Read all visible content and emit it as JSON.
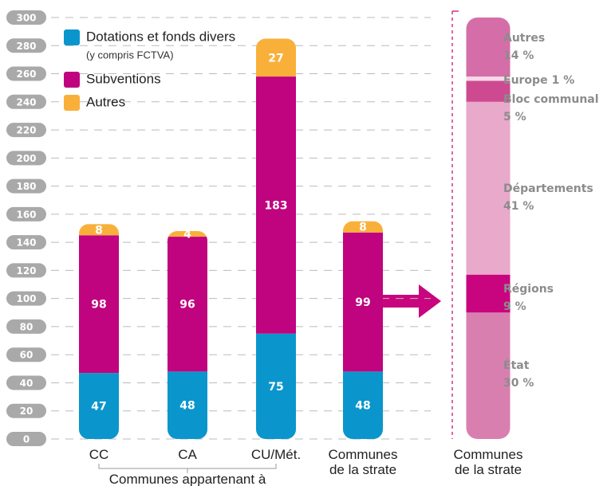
{
  "chart_data": [
    {
      "type": "bar",
      "stacked": true,
      "categories": [
        "CC",
        "CA",
        "CU/Mét.",
        "Communes de la strate"
      ],
      "category_group": "Communes appartenant à",
      "series": [
        {
          "name": "Dotations et fonds divers",
          "legend_note": "(y compris FCTVA)",
          "color": "#0a96cc",
          "values": [
            47,
            48,
            75,
            48
          ]
        },
        {
          "name": "Subventions",
          "color": "#c0037f",
          "values": [
            98,
            96,
            183,
            99
          ]
        },
        {
          "name": "Autres",
          "color": "#f9b03a",
          "values": [
            8,
            4,
            27,
            8
          ]
        }
      ],
      "ylim": [
        0,
        300
      ],
      "yticks": [
        0,
        20,
        40,
        60,
        80,
        100,
        120,
        140,
        160,
        180,
        200,
        220,
        240,
        260,
        280,
        300
      ],
      "grid": true
    },
    {
      "type": "bar",
      "stacked": true,
      "categories": [
        "Communes de la strate"
      ],
      "series": [
        {
          "name": "État",
          "color": "#d97fb0",
          "values": [
            30
          ],
          "value_labels": [
            "30 %"
          ]
        },
        {
          "name": "Régions",
          "color": "#c8057e",
          "values": [
            9
          ],
          "value_labels": [
            "9 %"
          ]
        },
        {
          "name": "Départements",
          "color": "#e8a9cb",
          "values": [
            41
          ],
          "value_labels": [
            "41 %"
          ]
        },
        {
          "name": "Bloc communal",
          "color": "#cd4a91",
          "values": [
            5
          ],
          "value_labels": [
            "5 %"
          ]
        },
        {
          "name": "Europe",
          "color": "#f6d9e9",
          "values": [
            1
          ],
          "value_labels": [
            "1 %"
          ]
        },
        {
          "name": "Autres",
          "color": "#d56ea8",
          "values": [
            14
          ],
          "value_labels": [
            "14 %"
          ]
        }
      ],
      "ylim": [
        0,
        100
      ]
    }
  ]
}
